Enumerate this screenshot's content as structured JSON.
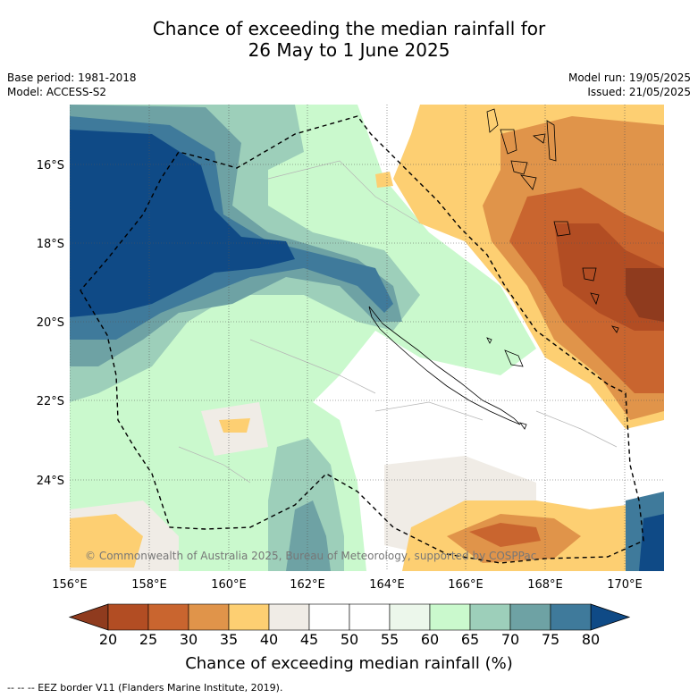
{
  "title": {
    "line1": "Chance of exceeding the median rainfall for",
    "line2": "26 May to 1 June 2025"
  },
  "meta": {
    "base_period": "Base period: 1981-2018",
    "model": "Model: ACCESS-S2",
    "model_run": "Model run: 19/05/2025",
    "issued": "Issued: 21/05/2025"
  },
  "map": {
    "lat_labels": [
      "16°S",
      "18°S",
      "20°S",
      "22°S",
      "24°S"
    ],
    "lon_labels": [
      "156°E",
      "158°E",
      "160°E",
      "162°E",
      "164°E",
      "166°E",
      "168°E",
      "170°E"
    ],
    "copyright": "© Commonwealth of Australia 2025, Bureau of Meteorology, supported by COSPPac"
  },
  "colorbar": {
    "ticks": [
      "20",
      "25",
      "30",
      "35",
      "40",
      "45",
      "50",
      "55",
      "60",
      "65",
      "70",
      "75",
      "80"
    ],
    "colors": [
      "#b24d23",
      "#c9652f",
      "#e0944a",
      "#fdcf72",
      "#f0ece6",
      "#ffffff",
      "#ffffff",
      "#ecf7eb",
      "#caf9cd",
      "#9dcfba",
      "#6ea2a4",
      "#3f7a9b"
    ],
    "low_color": "#8f3b1e",
    "high_color": "#0f4a86",
    "label": "Chance of exceeding median rainfall (%)"
  },
  "footer": "--  --  -- EEZ border V11 (Flanders Marine Institute, 2019)."
}
